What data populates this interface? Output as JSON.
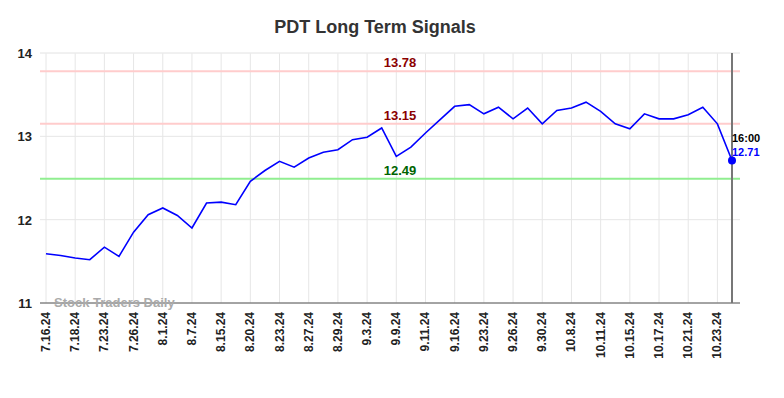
{
  "chart_data": {
    "type": "line",
    "title": "PDT Long Term Signals",
    "categories": [
      "7.16.24",
      null,
      "7.18.24",
      null,
      "7.23.24",
      null,
      "7.26.24",
      null,
      "8.1.24",
      null,
      "8.7.24",
      null,
      "8.15.24",
      null,
      "8.20.24",
      null,
      "8.23.24",
      null,
      "8.27.24",
      null,
      "8.29.24",
      null,
      "9.3.24",
      null,
      "9.9.24",
      null,
      "9.11.24",
      null,
      "9.16.24",
      null,
      "9.23.24",
      null,
      "9.26.24",
      null,
      "9.30.24",
      null,
      "10.8.24",
      null,
      "10.11.24",
      null,
      "10.15.24",
      null,
      "10.17.24",
      null,
      "10.21.24",
      null,
      "10.23.24",
      null
    ],
    "values": [
      11.59,
      11.57,
      11.54,
      11.52,
      11.67,
      11.56,
      11.85,
      12.06,
      12.14,
      12.05,
      11.9,
      12.2,
      12.21,
      12.18,
      12.46,
      12.59,
      12.7,
      12.63,
      12.74,
      12.81,
      12.84,
      12.96,
      12.99,
      13.1,
      12.76,
      12.87,
      13.04,
      13.2,
      13.36,
      13.38,
      13.27,
      13.35,
      13.21,
      13.34,
      13.15,
      13.31,
      13.34,
      13.41,
      13.3,
      13.15,
      13.09,
      13.27,
      13.21,
      13.21,
      13.26,
      13.35,
      13.15,
      12.71
    ],
    "color": "#0000ff",
    "ylim": [
      11,
      14
    ],
    "yticks": [
      11,
      12,
      13,
      14
    ],
    "grid": true,
    "reference_lines": [
      {
        "value": 13.78,
        "color": "#8b0000",
        "line_color": "#ffcccc"
      },
      {
        "value": 13.15,
        "color": "#8b0000",
        "line_color": "#ffcccc"
      },
      {
        "value": 12.49,
        "color": "#006400",
        "line_color": "#90ee90"
      }
    ],
    "last_time_label": "16:00",
    "watermark": "Stock Traders Daily"
  }
}
